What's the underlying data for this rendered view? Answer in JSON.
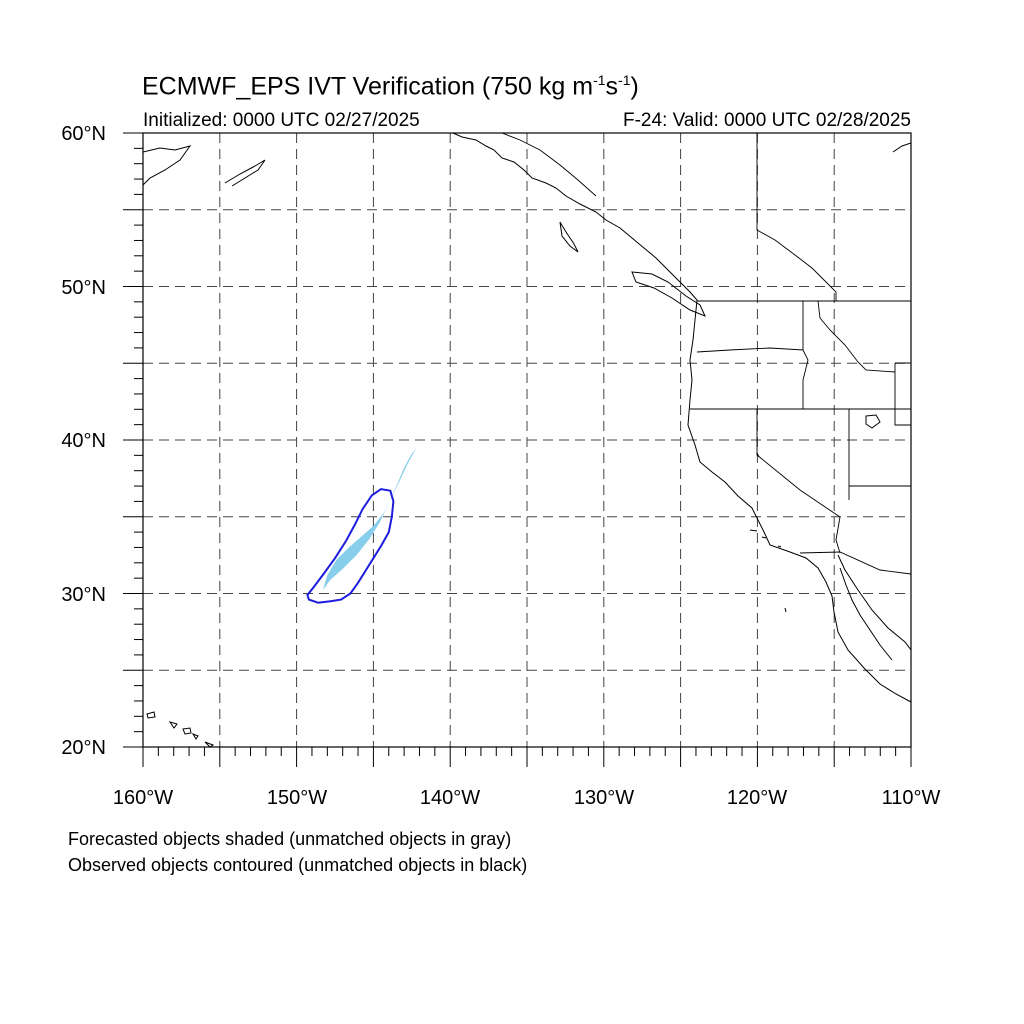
{
  "title": {
    "main": "ECMWF_EPS IVT Verification (750 kg m",
    "exp1": "-1",
    "mid": "s",
    "exp2": "-1",
    "end": ")"
  },
  "subtitle": {
    "initialized": "Initialized: 0000 UTC 02/27/2025",
    "valid": "F-24: Valid: 0000 UTC 02/28/2025"
  },
  "notes": {
    "line1": "Forecasted objects shaded (unmatched objects in gray)",
    "line2": "Observed objects contoured (unmatched objects in black)"
  },
  "map": {
    "extent": {
      "lon_min": -160,
      "lon_max": -110,
      "lat_min": 20,
      "lat_max": 60
    },
    "lat_labels": [
      "60°N",
      "50°N",
      "40°N",
      "30°N",
      "20°N"
    ],
    "lon_labels": [
      "160°W",
      "150°W",
      "140°W",
      "130°W",
      "120°W",
      "110°W"
    ],
    "colors": {
      "forecast_fill": "#87ceeb",
      "observed_contour": "#1c1ce0",
      "coastline": "#000000"
    },
    "objects": [
      {
        "name": "forecast object (matched)",
        "style": "shaded",
        "lonlat": [
          [
            -148.3,
            30.2
          ],
          [
            -148.0,
            31.2
          ],
          [
            -147.4,
            32.2
          ],
          [
            -146.6,
            33.0
          ],
          [
            -145.8,
            33.7
          ],
          [
            -145.0,
            34.4
          ],
          [
            -144.3,
            35.3
          ],
          [
            -143.8,
            36.3
          ],
          [
            -143.3,
            37.3
          ],
          [
            -142.8,
            38.4
          ],
          [
            -142.2,
            39.5
          ],
          [
            -142.5,
            39.1
          ],
          [
            -143.0,
            38.2
          ],
          [
            -143.5,
            37.0
          ],
          [
            -144.0,
            35.9
          ],
          [
            -144.6,
            34.6
          ],
          [
            -145.3,
            33.5
          ],
          [
            -146.1,
            32.5
          ],
          [
            -147.0,
            31.6
          ],
          [
            -147.8,
            30.9
          ]
        ]
      },
      {
        "name": "observed object (matched)",
        "style": "contour",
        "lonlat": [
          [
            -149.2,
            29.6
          ],
          [
            -148.6,
            29.4
          ],
          [
            -147.8,
            29.5
          ],
          [
            -147.1,
            29.6
          ],
          [
            -146.5,
            30.0
          ],
          [
            -146.0,
            30.7
          ],
          [
            -145.5,
            31.5
          ],
          [
            -145.0,
            32.3
          ],
          [
            -144.5,
            33.1
          ],
          [
            -144.0,
            34.0
          ],
          [
            -143.8,
            35.0
          ],
          [
            -143.7,
            36.0
          ],
          [
            -143.9,
            36.7
          ],
          [
            -144.5,
            36.8
          ],
          [
            -145.1,
            36.4
          ],
          [
            -145.7,
            35.5
          ],
          [
            -146.2,
            34.5
          ],
          [
            -146.8,
            33.4
          ],
          [
            -147.5,
            32.3
          ],
          [
            -148.3,
            31.2
          ],
          [
            -148.9,
            30.4
          ],
          [
            -149.3,
            29.9
          ]
        ]
      }
    ]
  }
}
